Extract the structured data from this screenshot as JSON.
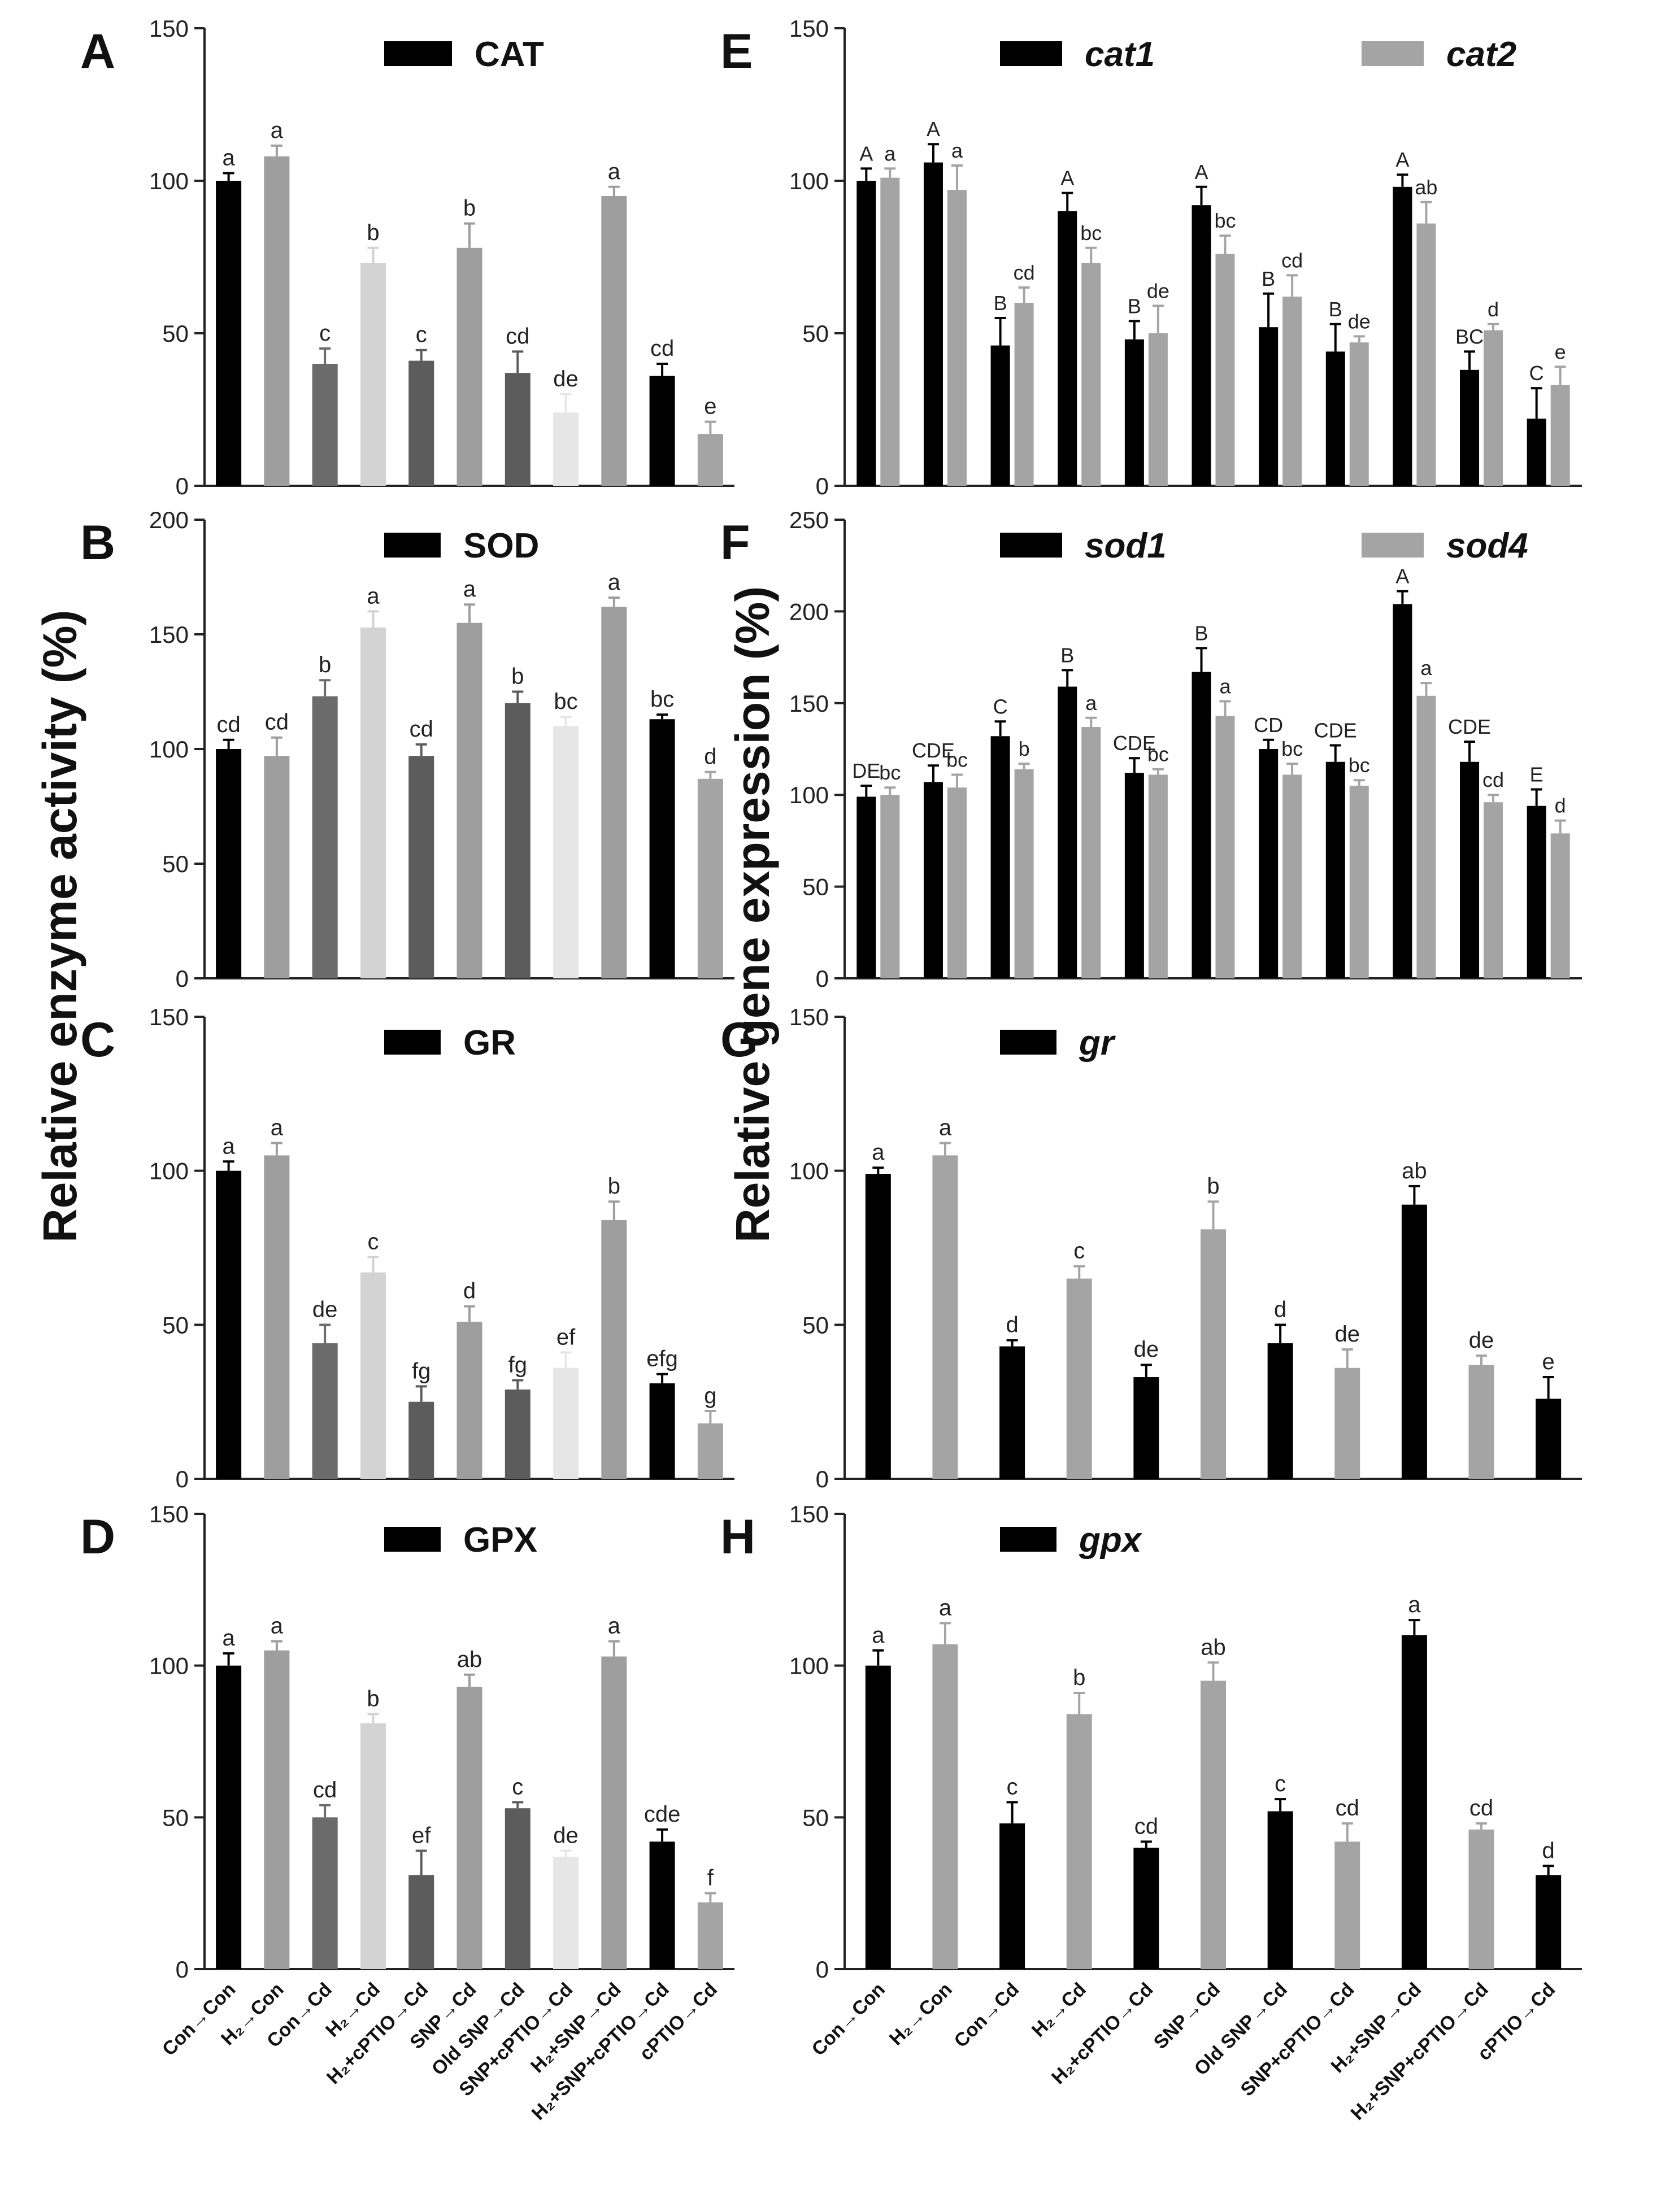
{
  "figure": {
    "left_ylabel": "Relative enzyme activity (%)",
    "right_ylabel": "Relative gene expression (%)",
    "xticklabels": [
      "Con→Con",
      "H₂→Con",
      "Con→Cd",
      "H₂→Cd",
      "H₂+cPTIO→Cd",
      "SNP→Cd",
      "Old SNP→Cd",
      "SNP+cPTIO→Cd",
      "H₂+SNP→Cd",
      "H₂+SNP+cPTIO→Cd",
      "cPTIO→Cd"
    ]
  },
  "chart_data": [
    {
      "panel": "A",
      "type": "bar",
      "legend_italic": false,
      "ylim": [
        0,
        150
      ],
      "yticks": [
        0,
        50,
        100,
        150
      ],
      "series": [
        {
          "name": "CAT",
          "values": [
            100,
            108,
            40,
            73,
            41,
            78,
            37,
            24,
            95,
            36,
            17
          ],
          "errors": [
            2.5,
            3.5,
            5,
            5,
            3.5,
            8,
            7,
            6,
            3,
            4,
            4
          ],
          "letters": [
            "a",
            "a",
            "c",
            "b",
            "c",
            "b",
            "cd",
            "de",
            "a",
            "cd",
            "e"
          ],
          "colors": [
            "#000000",
            "#9e9e9e",
            "#6b6b6b",
            "#d3d3d3",
            "#5c5c5c",
            "#9e9e9e",
            "#5c5c5c",
            "#e6e6e6",
            "#9e9e9e",
            "#000000",
            "#a4a4a4"
          ]
        }
      ]
    },
    {
      "panel": "B",
      "type": "bar",
      "legend_italic": false,
      "ylim": [
        0,
        200
      ],
      "yticks": [
        0,
        50,
        100,
        150,
        200
      ],
      "series": [
        {
          "name": "SOD",
          "values": [
            100,
            97,
            123,
            153,
            97,
            155,
            120,
            110,
            162,
            113,
            87
          ],
          "errors": [
            4,
            8,
            7,
            7,
            5,
            8,
            5,
            4,
            4,
            2,
            3
          ],
          "letters": [
            "cd",
            "cd",
            "b",
            "a",
            "cd",
            "a",
            "b",
            "bc",
            "a",
            "bc",
            "d"
          ],
          "colors": [
            "#000000",
            "#9e9e9e",
            "#6b6b6b",
            "#d3d3d3",
            "#5c5c5c",
            "#9e9e9e",
            "#5c5c5c",
            "#e6e6e6",
            "#9e9e9e",
            "#000000",
            "#a4a4a4"
          ]
        }
      ]
    },
    {
      "panel": "C",
      "type": "bar",
      "legend_italic": false,
      "ylim": [
        0,
        150
      ],
      "yticks": [
        0,
        50,
        100,
        150
      ],
      "series": [
        {
          "name": "GR",
          "values": [
            100,
            105,
            44,
            67,
            25,
            51,
            29,
            36,
            84,
            31,
            18
          ],
          "errors": [
            3,
            4,
            6,
            5,
            5,
            5,
            3,
            5,
            6,
            3,
            4
          ],
          "letters": [
            "a",
            "a",
            "de",
            "c",
            "fg",
            "d",
            "fg",
            "ef",
            "b",
            "efg",
            "g"
          ],
          "colors": [
            "#000000",
            "#9e9e9e",
            "#6b6b6b",
            "#d3d3d3",
            "#5c5c5c",
            "#9e9e9e",
            "#5c5c5c",
            "#e6e6e6",
            "#9e9e9e",
            "#000000",
            "#a4a4a4"
          ]
        }
      ]
    },
    {
      "panel": "D",
      "type": "bar",
      "legend_italic": false,
      "ylim": [
        0,
        150
      ],
      "yticks": [
        0,
        50,
        100,
        150
      ],
      "series": [
        {
          "name": "GPX",
          "values": [
            100,
            105,
            50,
            81,
            31,
            93,
            53,
            37,
            103,
            42,
            22
          ],
          "errors": [
            4,
            3,
            4,
            3,
            8,
            4,
            2,
            2,
            5,
            4,
            3
          ],
          "letters": [
            "a",
            "a",
            "cd",
            "b",
            "ef",
            "ab",
            "c",
            "de",
            "a",
            "cde",
            "f"
          ],
          "colors": [
            "#000000",
            "#9e9e9e",
            "#6b6b6b",
            "#d3d3d3",
            "#5c5c5c",
            "#9e9e9e",
            "#5c5c5c",
            "#e6e6e6",
            "#9e9e9e",
            "#000000",
            "#a4a4a4"
          ]
        }
      ]
    },
    {
      "panel": "E",
      "type": "bar",
      "legend_italic": true,
      "ylim": [
        0,
        150
      ],
      "yticks": [
        0,
        50,
        100,
        150
      ],
      "series": [
        {
          "name": "cat1",
          "values": [
            100,
            106,
            46,
            90,
            48,
            92,
            52,
            44,
            98,
            38,
            22
          ],
          "errors": [
            4,
            6,
            9,
            6,
            6,
            6,
            11,
            9,
            4,
            6,
            10
          ],
          "letters": [
            "A",
            "A",
            "B",
            "A",
            "B",
            "A",
            "B",
            "B",
            "A",
            "BC",
            "C"
          ],
          "colors": [
            "#000000",
            "#000000",
            "#000000",
            "#000000",
            "#000000",
            "#000000",
            "#000000",
            "#000000",
            "#000000",
            "#000000",
            "#000000"
          ]
        },
        {
          "name": "cat2",
          "values": [
            101,
            97,
            60,
            73,
            50,
            76,
            62,
            47,
            86,
            51,
            33
          ],
          "errors": [
            3,
            8,
            5,
            5,
            9,
            6,
            7,
            2,
            7,
            2,
            6
          ],
          "letters": [
            "a",
            "a",
            "cd",
            "bc",
            "de",
            "bc",
            "cd",
            "de",
            "ab",
            "d",
            "e"
          ],
          "colors": [
            "#a4a4a4",
            "#a4a4a4",
            "#a4a4a4",
            "#a4a4a4",
            "#a4a4a4",
            "#a4a4a4",
            "#a4a4a4",
            "#a4a4a4",
            "#a4a4a4",
            "#a4a4a4",
            "#a4a4a4"
          ]
        }
      ]
    },
    {
      "panel": "F",
      "type": "bar",
      "legend_italic": true,
      "ylim": [
        0,
        250
      ],
      "yticks": [
        0,
        50,
        100,
        150,
        200,
        250
      ],
      "series": [
        {
          "name": "sod1",
          "values": [
            99,
            107,
            132,
            159,
            112,
            167,
            125,
            118,
            204,
            118,
            94
          ],
          "errors": [
            6,
            9,
            8,
            9,
            8,
            13,
            5,
            9,
            7,
            11,
            9
          ],
          "letters": [
            "DE",
            "CDE",
            "C",
            "B",
            "CDE",
            "B",
            "CD",
            "CDE",
            "A",
            "CDE",
            "E"
          ],
          "colors": [
            "#000000",
            "#000000",
            "#000000",
            "#000000",
            "#000000",
            "#000000",
            "#000000",
            "#000000",
            "#000000",
            "#000000",
            "#000000"
          ]
        },
        {
          "name": "sod4",
          "values": [
            100,
            104,
            114,
            137,
            111,
            143,
            111,
            105,
            154,
            96,
            79
          ],
          "errors": [
            4,
            7,
            3,
            5,
            3,
            8,
            6,
            3,
            7,
            4,
            7
          ],
          "letters": [
            "bc",
            "bc",
            "b",
            "a",
            "bc",
            "a",
            "bc",
            "bc",
            "a",
            "cd",
            "d"
          ],
          "colors": [
            "#a4a4a4",
            "#a4a4a4",
            "#a4a4a4",
            "#a4a4a4",
            "#a4a4a4",
            "#a4a4a4",
            "#a4a4a4",
            "#a4a4a4",
            "#a4a4a4",
            "#a4a4a4",
            "#a4a4a4"
          ]
        }
      ]
    },
    {
      "panel": "G",
      "type": "bar",
      "legend_italic": true,
      "ylim": [
        0,
        150
      ],
      "yticks": [
        0,
        50,
        100,
        150
      ],
      "series": [
        {
          "name": "gr",
          "values": [
            99,
            105,
            43,
            65,
            33,
            81,
            44,
            36,
            89,
            37,
            26
          ],
          "errors": [
            2,
            4,
            2,
            4,
            4,
            9,
            6,
            6,
            6,
            3,
            7
          ],
          "letters": [
            "a",
            "a",
            "d",
            "c",
            "de",
            "b",
            "d",
            "de",
            "ab",
            "de",
            "e"
          ],
          "colors": [
            "#000000",
            "#a4a4a4",
            "#000000",
            "#a4a4a4",
            "#000000",
            "#a4a4a4",
            "#000000",
            "#a4a4a4",
            "#000000",
            "#a4a4a4",
            "#000000"
          ]
        }
      ]
    },
    {
      "panel": "H",
      "type": "bar",
      "legend_italic": true,
      "ylim": [
        0,
        150
      ],
      "yticks": [
        0,
        50,
        100,
        150
      ],
      "series": [
        {
          "name": "gpx",
          "values": [
            100,
            107,
            48,
            84,
            40,
            95,
            52,
            42,
            110,
            46,
            31
          ],
          "errors": [
            5,
            7,
            7,
            7,
            2,
            6,
            4,
            6,
            5,
            2,
            3
          ],
          "letters": [
            "a",
            "a",
            "c",
            "b",
            "cd",
            "ab",
            "c",
            "cd",
            "a",
            "cd",
            "d"
          ],
          "colors": [
            "#000000",
            "#a4a4a4",
            "#000000",
            "#a4a4a4",
            "#000000",
            "#a4a4a4",
            "#000000",
            "#a4a4a4",
            "#000000",
            "#a4a4a4",
            "#000000"
          ]
        }
      ]
    }
  ]
}
